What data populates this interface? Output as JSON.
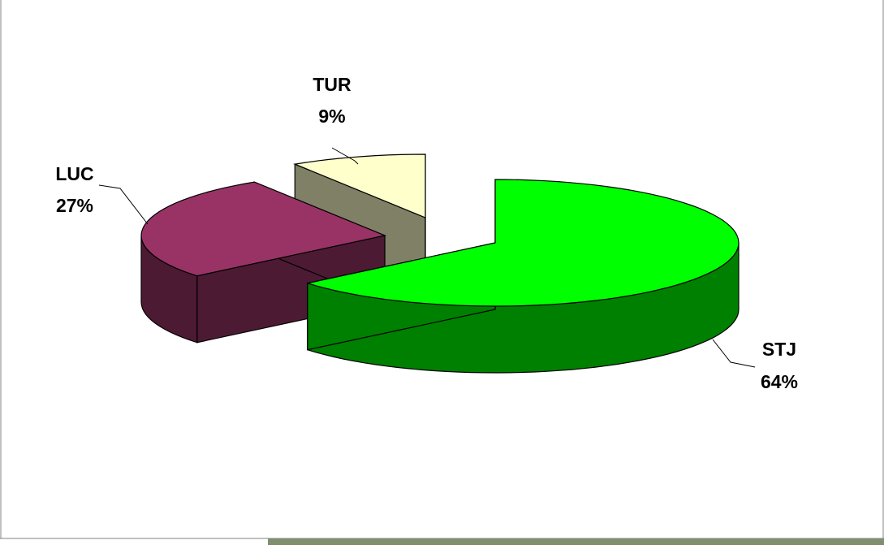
{
  "chart_data": {
    "type": "pie",
    "title": "",
    "categories": [
      "STJ",
      "LUC",
      "TUR"
    ],
    "values": [
      64,
      27,
      9
    ],
    "labels": [
      "64%",
      "27%",
      "9%"
    ],
    "legend": "none",
    "style": "3d-exploded",
    "colors": {
      "STJ_top": "#00ff00",
      "STJ_side": "#008000",
      "LUC_top": "#993366",
      "LUC_side": "#4d1a33",
      "TUR_top": "#ffffcc",
      "TUR_side": "#808066",
      "edge": "#000000"
    }
  }
}
